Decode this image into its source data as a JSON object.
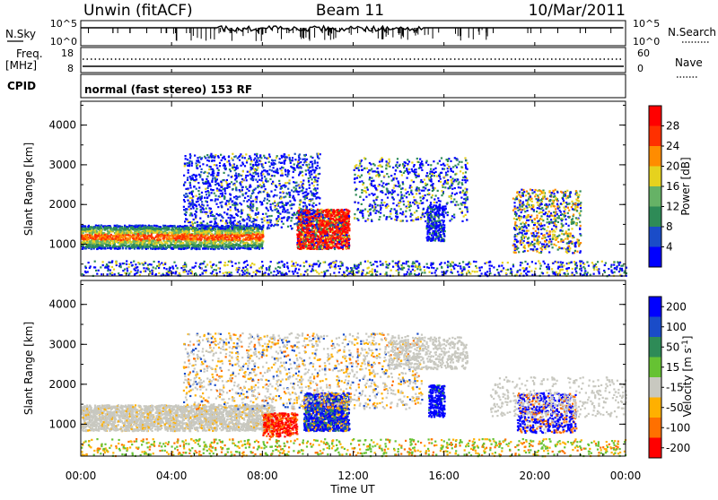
{
  "header": {
    "site": "Unwin (fitACF)",
    "beam": "Beam 11",
    "date": "10/Mar/2011"
  },
  "panels": {
    "nsky_label": "N.Sky",
    "nsearch_label": "N.Search",
    "nsky_ticks": [
      "10^5",
      "10^0"
    ],
    "nsky_right_ticks": [
      "10^5",
      "10^0"
    ],
    "freq_label": "Freq.",
    "freq_unit": "[MHz]",
    "freq_ticks": [
      "18",
      "8"
    ],
    "nave_label": "Nave",
    "nave_ticks": [
      "60",
      "0"
    ],
    "cpid_label": "CPID",
    "cpid_text": "normal (fast stereo) 153 RF"
  },
  "chart_data": [
    {
      "type": "heatmap",
      "name": "power",
      "ylabel": "Slant Range [km]",
      "y_ticks": [
        "1000",
        "2000",
        "3000",
        "4000"
      ],
      "ylim": [
        200,
        4600
      ],
      "colorbar_label": "Power [dB]",
      "colorbar_ticks": [
        "4",
        "8",
        "12",
        "16",
        "20",
        "24",
        "28"
      ],
      "colors": [
        "#0000ff",
        "#1a4cc8",
        "#2e8b57",
        "#66b266",
        "#e6d21e",
        "#ff8c00",
        "#ff3000",
        "#ff0000"
      ]
    },
    {
      "type": "heatmap",
      "name": "velocity",
      "ylabel": "Slant Range [km]",
      "y_ticks": [
        "1000",
        "2000",
        "3000",
        "4000"
      ],
      "ylim": [
        200,
        4600
      ],
      "colorbar_label": "Velocity [m s^-1]",
      "colorbar_ticks": [
        "200",
        "100",
        "50",
        "15",
        "-15",
        "-50",
        "-100",
        "-200"
      ],
      "colors": [
        "#0000ff",
        "#1a4cc8",
        "#2e8b57",
        "#66c233",
        "#c8c8c0",
        "#ffb000",
        "#ff7000",
        "#ff0000"
      ]
    }
  ],
  "time_axis": {
    "xlabel": "Time UT",
    "ticks": [
      "00:00",
      "04:00",
      "08:00",
      "12:00",
      "16:00",
      "20:00",
      "00:00"
    ],
    "xlim_hours": [
      0,
      24
    ]
  }
}
